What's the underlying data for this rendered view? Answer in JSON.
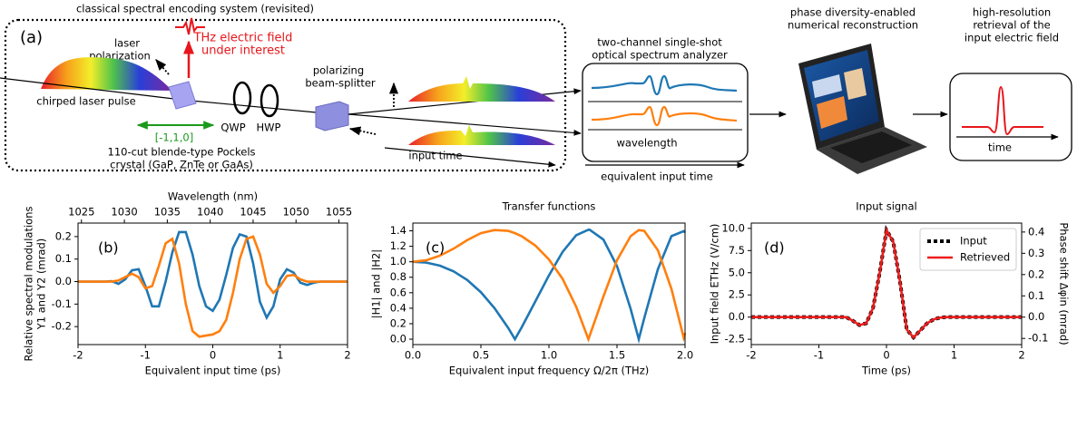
{
  "diagram": {
    "title": "classical spectral encoding system (revisited)",
    "panel_label": "(a)",
    "laser_polarization": [
      "laser",
      "polarization"
    ],
    "thz_field": [
      "THz electric field",
      "under interest"
    ],
    "chirped_pulse": "chirped laser pulse",
    "crystal_axis": "[-1,1,0]",
    "crystal": [
      "110-cut blende-type Pockels",
      "crystal (GaP, ZnTe or GaAs)"
    ],
    "qwp": "QWP",
    "hwp": "HWP",
    "beam_splitter": [
      "polarizing",
      "beam-splitter"
    ],
    "input_time": "input time",
    "osa": [
      "two-channel single-shot",
      "optical spectrum analyzer"
    ],
    "osa_axis": "wavelength",
    "equivalent_time": "equivalent input time",
    "reconstruction": [
      "phase diversity-enabled",
      "numerical reconstruction"
    ],
    "retrieval": [
      "high-resolution",
      "retrieval of the",
      "input electric field"
    ],
    "retrieval_axis": "time"
  },
  "chart_data": [
    {
      "type": "line",
      "panel_label": "(b)",
      "xlabel": "Equivalent input time (ps)",
      "ylabel": [
        "Relative spectral modulations",
        "Y1 and Y2 (mrad)"
      ],
      "x2label": "Wavelength (nm)",
      "x": [
        -2,
        -1.9,
        -1.8,
        -1.7,
        -1.6,
        -1.5,
        -1.4,
        -1.3,
        -1.2,
        -1.1,
        -1,
        -0.9,
        -0.8,
        -0.7,
        -0.6,
        -0.5,
        -0.4,
        -0.3,
        -0.2,
        -0.1,
        0,
        0.1,
        0.2,
        0.3,
        0.4,
        0.5,
        0.6,
        0.7,
        0.8,
        0.9,
        1,
        1.1,
        1.2,
        1.3,
        1.4,
        1.5,
        1.6,
        1.7,
        1.8,
        1.9,
        2
      ],
      "series": [
        {
          "color": "#1f77b4",
          "values": [
            0,
            0,
            0,
            0,
            0,
            0.002,
            -0.01,
            0.01,
            0.05,
            0.055,
            -0.02,
            -0.11,
            -0.11,
            0,
            0.13,
            0.22,
            0.22,
            0.12,
            -0.02,
            -0.11,
            -0.13,
            -0.08,
            0.03,
            0.15,
            0.21,
            0.2,
            0.08,
            -0.09,
            -0.16,
            -0.11,
            0.01,
            0.055,
            0.04,
            -0.005,
            -0.015,
            -0.005,
            0,
            0,
            0,
            0,
            0
          ]
        },
        {
          "color": "#ff7f0e",
          "values": [
            0,
            0,
            0,
            0,
            0,
            0,
            0.005,
            0.02,
            0.035,
            0.02,
            -0.03,
            -0.02,
            0.07,
            0.17,
            0.19,
            0.08,
            -0.1,
            -0.22,
            -0.245,
            -0.24,
            -0.235,
            -0.22,
            -0.17,
            -0.05,
            0.1,
            0.19,
            0.2,
            0.12,
            -0.01,
            -0.05,
            -0.02,
            0.025,
            0.03,
            0.01,
            0,
            0,
            0,
            0,
            0,
            0,
            0
          ]
        }
      ],
      "xlim": [
        -2,
        2
      ],
      "xticks": [
        -2,
        -1,
        0,
        1,
        2
      ],
      "ylim": [
        -0.28,
        0.26
      ],
      "yticks": [
        -0.2,
        -0.1,
        {
          "value": 0,
          "label": "0.0"
        },
        0.1,
        0.2
      ],
      "x2lim": [
        1024.6,
        1056.0
      ],
      "x2ticks": [
        1025,
        1030,
        1035,
        1040,
        1045,
        1050,
        1055
      ]
    },
    {
      "type": "line",
      "panel_label": "(c)",
      "title": "Transfer functions",
      "xlabel": "Equivalent input frequency Ω/2π (THz)",
      "ylabel": [
        "|H1| and |H2|"
      ],
      "x": [
        0,
        0.1,
        0.2,
        0.3,
        0.4,
        0.5,
        0.6,
        0.7,
        0.75,
        0.8,
        0.9,
        1,
        1.1,
        1.2,
        1.29,
        1.3,
        1.4,
        1.5,
        1.6,
        1.66,
        1.7,
        1.8,
        1.9,
        1.99,
        2
      ],
      "series": [
        {
          "color": "#1f77b4",
          "values": [
            1,
            0.989,
            0.949,
            0.876,
            0.764,
            0.607,
            0.401,
            0.147,
            0,
            0.154,
            0.488,
            0.824,
            1.127,
            1.343,
            1.414,
            1.413,
            1.287,
            0.945,
            0.393,
            0,
            0.27,
            0.902,
            1.331,
            1.396,
            1.38
          ]
        },
        {
          "color": "#ff7f0e",
          "values": [
            1,
            1.02,
            1.08,
            1.17,
            1.28,
            1.37,
            1.41,
            1.4,
            1.37,
            1.33,
            1.21,
            1.03,
            0.78,
            0.42,
            0,
            0.05,
            0.55,
            1.02,
            1.33,
            1.41,
            1.4,
            1.15,
            0.65,
            0.02,
            0.08
          ]
        }
      ],
      "xlim": [
        0,
        2
      ],
      "xticks": [
        {
          "value": 0,
          "label": "0.0"
        },
        0.5,
        {
          "value": 1,
          "label": "1.0"
        },
        1.5,
        {
          "value": 2,
          "label": "2.0"
        }
      ],
      "ylim": [
        -0.07,
        1.5
      ],
      "yticks": [
        {
          "value": 0,
          "label": "0.0"
        },
        0.2,
        0.4,
        0.6,
        0.8,
        {
          "value": 1,
          "label": "1.0"
        },
        1.2,
        1.4
      ]
    },
    {
      "type": "line",
      "panel_label": "(d)",
      "title": "Input signal",
      "xlabel": "Time (ps)",
      "ylabel": [
        "Input field ETHz (V/cm)"
      ],
      "y2label": "Phase shift Δφin (mrad)",
      "legend": "upper right",
      "x": [
        -2,
        -1.9,
        -1.8,
        -1.7,
        -1.6,
        -1.5,
        -1.4,
        -1.3,
        -1.2,
        -1.1,
        -1,
        -0.9,
        -0.8,
        -0.7,
        -0.6,
        -0.5,
        -0.4,
        -0.3,
        -0.2,
        -0.1,
        0,
        0.1,
        0.2,
        0.3,
        0.4,
        0.5,
        0.6,
        0.7,
        0.8,
        0.9,
        1,
        1.1,
        1.2,
        1.3,
        1.4,
        1.5,
        1.6,
        1.7,
        1.8,
        1.9,
        2
      ],
      "series": [
        {
          "name": "Input",
          "color": "#000000",
          "dashed": true,
          "values": [
            0,
            0,
            0,
            0,
            0,
            0,
            0,
            0,
            0,
            0,
            0,
            0,
            0,
            0,
            0,
            -0.4,
            -0.9,
            -0.7,
            1.0,
            5.0,
            9.8,
            8.5,
            4.0,
            -1.4,
            -2.3,
            -1.5,
            -0.7,
            -0.25,
            -0.05,
            0,
            0,
            0,
            0,
            0,
            0,
            0,
            0,
            0,
            0,
            0,
            0
          ]
        },
        {
          "name": "Retrieved",
          "color": "#ee1c1c",
          "dashed": false,
          "values": [
            0,
            0,
            0,
            0,
            0,
            0,
            0,
            0,
            0,
            0,
            0,
            0,
            0,
            0,
            0,
            -0.4,
            -0.9,
            -0.7,
            1.0,
            5.0,
            9.8,
            8.5,
            4.0,
            -1.4,
            -2.3,
            -1.5,
            -0.7,
            -0.25,
            -0.05,
            0,
            0,
            0,
            0,
            0,
            0,
            0,
            0,
            0,
            0,
            0,
            0
          ]
        }
      ],
      "xlim": [
        -2,
        2
      ],
      "xticks": [
        -2,
        -1,
        0,
        1,
        2
      ],
      "ylim": [
        -3.1,
        10.6
      ],
      "yticks": [
        -2.5,
        {
          "value": 0,
          "label": "0.0"
        },
        2.5,
        {
          "value": 5,
          "label": "5.0"
        },
        7.5,
        {
          "value": 10,
          "label": "10.0"
        }
      ],
      "y2lim": [
        -0.129,
        0.442
      ],
      "y2ticks": [
        -0.1,
        {
          "value": 0,
          "label": "0.0"
        },
        0.1,
        0.2,
        0.3,
        0.4
      ]
    }
  ]
}
